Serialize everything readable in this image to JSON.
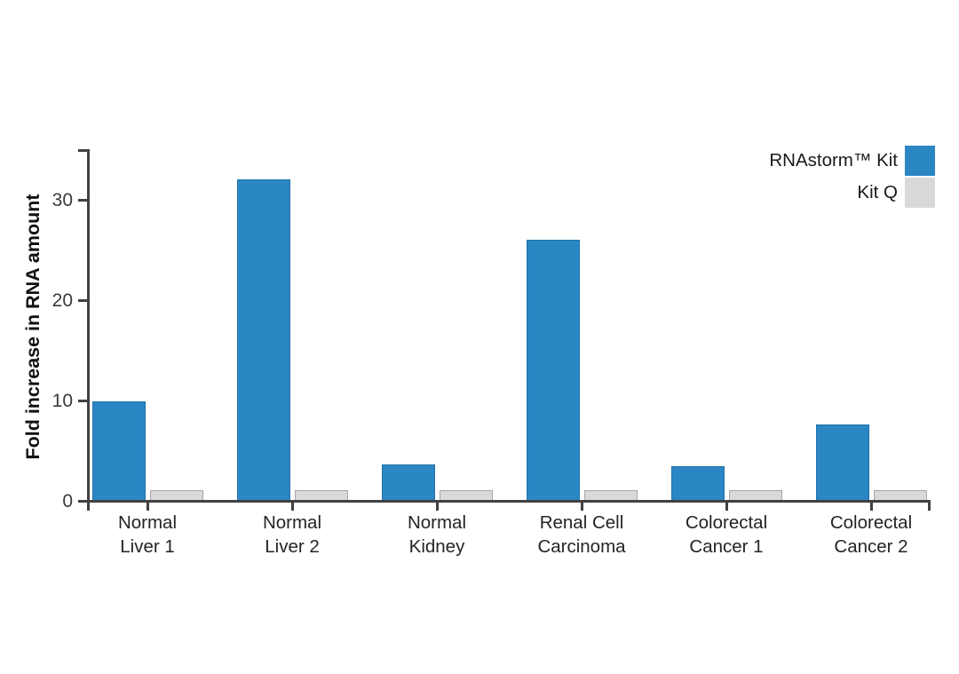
{
  "page": {
    "background_color": "#ffffff"
  },
  "chart_data": {
    "type": "bar",
    "title": "",
    "xlabel": "",
    "ylabel": "Fold increase in RNA amount",
    "ylim": [
      0,
      35
    ],
    "yticks": [
      0,
      10,
      20,
      30
    ],
    "grid": false,
    "legend_position": "top-right",
    "axis_color": "#414141",
    "tick_label_color": "#3a3a3a",
    "category_label_color": "#242424",
    "categories": [
      "Normal\nLiver 1",
      "Normal\nLiver 2",
      "Normal\nKidney",
      "Renal Cell\nCarcinoma",
      "Colorectal\nCancer 1",
      "Colorectal\nCancer 2"
    ],
    "series": [
      {
        "name": "RNAstorm™ Kit",
        "color": "#2b86c4",
        "border_color": "#2272a8",
        "values": [
          9.8,
          32,
          3.5,
          26,
          3.4,
          7.5
        ]
      },
      {
        "name": "Kit Q",
        "color": "#d9d9d9",
        "border_color": "#a6a6a6",
        "values": [
          1,
          1,
          1,
          1,
          1,
          1
        ]
      }
    ]
  }
}
